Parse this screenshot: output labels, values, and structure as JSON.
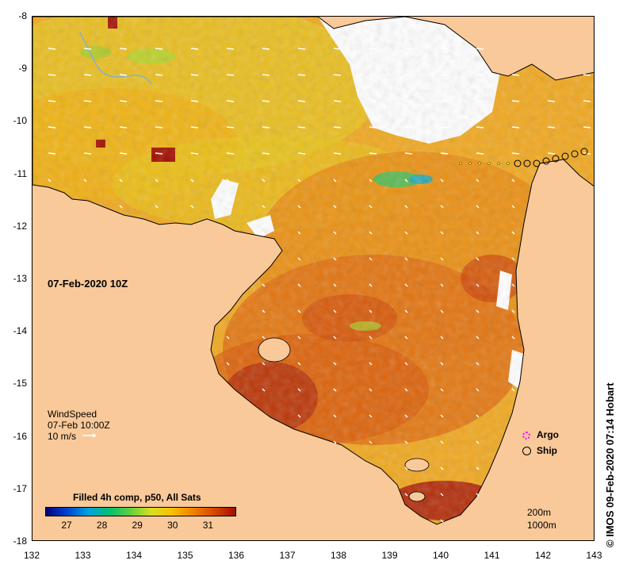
{
  "map": {
    "date_label": "07-Feb-2020 10Z",
    "lat_labels": [
      "-8",
      "-9",
      "-10",
      "-11",
      "-12",
      "-13",
      "-14",
      "-15",
      "-16",
      "-17",
      "-18"
    ],
    "lon_labels": [
      "132",
      "133",
      "134",
      "135",
      "136",
      "137",
      "138",
      "139",
      "140",
      "141",
      "142",
      "143"
    ]
  },
  "wind": {
    "title": "WindSpeed",
    "time": "07-Feb 10:00Z",
    "scale_label": "10 m/s"
  },
  "colorbar": {
    "title": "Filled 4h comp, p50, All Sats",
    "ticks": [
      "27",
      "28",
      "29",
      "30",
      "31"
    ],
    "colors": [
      "#00007a",
      "#0044d0",
      "#00a0e0",
      "#00c070",
      "#60d040",
      "#d8e020",
      "#f8c000",
      "#f08000",
      "#d84800",
      "#a01000"
    ]
  },
  "legend": {
    "argo_label": "Argo",
    "ship_label": "Ship",
    "argo_color": "#ff00ff"
  },
  "depth_labels": {
    "contour_200": "200m",
    "contour_1000": "1000m"
  },
  "credit": "© IMOS 09-Feb-2020 07:14 Hobart",
  "colors": {
    "land": "#f9c99a",
    "missing": "#ffffff"
  }
}
